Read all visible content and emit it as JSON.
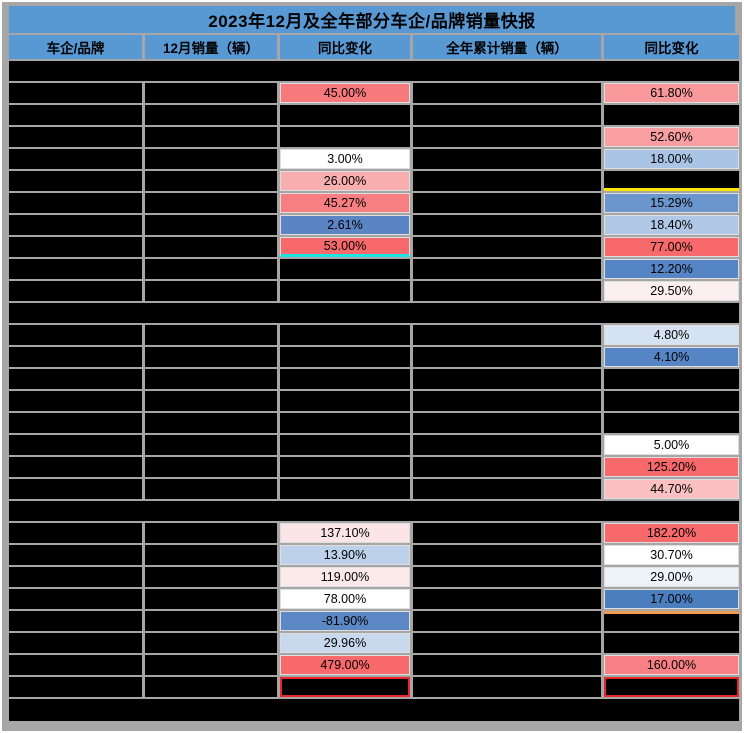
{
  "title": "2023年12月及全年部分车企/品牌销量快报",
  "columns": [
    "车企/品牌",
    "12月销量（辆）",
    "同比变化",
    "全年累计销量（辆）",
    "同比变化"
  ],
  "theme": {
    "header_bg": "#5899d4",
    "grout": "#a6a6a6",
    "redaction": "#000000",
    "accent_yellow": "#ffe500",
    "accent_cyan": "#1be4e4",
    "accent_orange": "#ed9e55",
    "accent_red_border": "#e8262e"
  },
  "rows": [
    {
      "type": "bar"
    },
    {
      "type": "data",
      "cells": [
        {
          "r": true
        },
        {
          "r": true
        },
        {
          "v": "45.00%",
          "bg": "#f8797c"
        },
        {
          "r": true
        },
        {
          "v": "61.80%",
          "bg": "#f9989b"
        }
      ]
    },
    {
      "type": "data",
      "cells": [
        {
          "r": true
        },
        {
          "r": true
        },
        {
          "r": true
        },
        {
          "r": true
        },
        {
          "r": true
        }
      ]
    },
    {
      "type": "data",
      "cells": [
        {
          "r": true
        },
        {
          "r": true
        },
        {
          "r": true
        },
        {
          "r": true
        },
        {
          "v": "52.60%",
          "bg": "#f99fa2"
        }
      ]
    },
    {
      "type": "data",
      "cells": [
        {
          "r": true
        },
        {
          "r": true
        },
        {
          "v": "3.00%",
          "bg": "#fefefe"
        },
        {
          "r": true
        },
        {
          "v": "18.00%",
          "bg": "#a9c4e4"
        }
      ]
    },
    {
      "type": "data",
      "cells": [
        {
          "r": true
        },
        {
          "r": true
        },
        {
          "v": "26.00%",
          "bg": "#f9aeb0"
        },
        {
          "r": true
        },
        {
          "r": true,
          "ab": "#ffe500"
        }
      ]
    },
    {
      "type": "data",
      "cells": [
        {
          "r": true
        },
        {
          "r": true
        },
        {
          "v": "45.27%",
          "bg": "#f87f81"
        },
        {
          "r": true
        },
        {
          "v": "15.29%",
          "bg": "#6b96cd"
        }
      ]
    },
    {
      "type": "data",
      "cells": [
        {
          "r": true
        },
        {
          "r": true
        },
        {
          "v": "2.61%",
          "bg": "#5a84c4"
        },
        {
          "r": true
        },
        {
          "v": "18.40%",
          "bg": "#b0c8e6"
        }
      ]
    },
    {
      "type": "data",
      "cells": [
        {
          "r": true
        },
        {
          "r": true
        },
        {
          "v": "53.00%",
          "bg": "#f8696b",
          "ab": "#1be4e4"
        },
        {
          "r": true
        },
        {
          "v": "77.00%",
          "bg": "#f8696b"
        }
      ]
    },
    {
      "type": "data",
      "cells": [
        {
          "r": true
        },
        {
          "r": true
        },
        {
          "r": true
        },
        {
          "r": true
        },
        {
          "v": "12.20%",
          "bg": "#5585c5"
        }
      ]
    },
    {
      "type": "data",
      "cells": [
        {
          "r": true
        },
        {
          "r": true
        },
        {
          "r": true
        },
        {
          "r": true
        },
        {
          "v": "29.50%",
          "bg": "#fbeff0"
        }
      ]
    },
    {
      "type": "bar"
    },
    {
      "type": "data",
      "cells": [
        {
          "r": true
        },
        {
          "r": true
        },
        {
          "r": true
        },
        {
          "r": true
        },
        {
          "v": "4.80%",
          "bg": "#d5e2f1"
        }
      ]
    },
    {
      "type": "data",
      "cells": [
        {
          "r": true
        },
        {
          "r": true
        },
        {
          "r": true
        },
        {
          "r": true
        },
        {
          "v": "4.10%",
          "bg": "#5585c5"
        }
      ]
    },
    {
      "type": "data",
      "cells": [
        {
          "r": true
        },
        {
          "r": true
        },
        {
          "r": true
        },
        {
          "r": true
        },
        {
          "r": true
        }
      ]
    },
    {
      "type": "data",
      "cells": [
        {
          "r": true
        },
        {
          "r": true
        },
        {
          "r": true
        },
        {
          "r": true
        },
        {
          "r": true
        }
      ]
    },
    {
      "type": "data",
      "cells": [
        {
          "r": true
        },
        {
          "r": true
        },
        {
          "r": true
        },
        {
          "r": true
        },
        {
          "r": true
        }
      ]
    },
    {
      "type": "data",
      "cells": [
        {
          "r": true
        },
        {
          "r": true
        },
        {
          "r": true
        },
        {
          "r": true
        },
        {
          "v": "5.00%",
          "bg": "#fefeff"
        }
      ]
    },
    {
      "type": "data",
      "cells": [
        {
          "r": true
        },
        {
          "r": true
        },
        {
          "r": true
        },
        {
          "r": true
        },
        {
          "v": "125.20%",
          "bg": "#f8696b"
        }
      ]
    },
    {
      "type": "data",
      "cells": [
        {
          "r": true
        },
        {
          "r": true
        },
        {
          "r": true
        },
        {
          "r": true
        },
        {
          "v": "44.70%",
          "bg": "#fac0c2"
        }
      ]
    },
    {
      "type": "bar"
    },
    {
      "type": "data",
      "cells": [
        {
          "r": true
        },
        {
          "r": true
        },
        {
          "v": "137.10%",
          "bg": "#fbe5e6"
        },
        {
          "r": true
        },
        {
          "v": "182.20%",
          "bg": "#f8696b"
        }
      ]
    },
    {
      "type": "data",
      "cells": [
        {
          "r": true
        },
        {
          "r": true
        },
        {
          "v": "13.90%",
          "bg": "#bdd2ea"
        },
        {
          "r": true
        },
        {
          "v": "30.70%",
          "bg": "#fefeff"
        }
      ]
    },
    {
      "type": "data",
      "cells": [
        {
          "r": true
        },
        {
          "r": true
        },
        {
          "v": "119.00%",
          "bg": "#fbe9ea"
        },
        {
          "r": true
        },
        {
          "v": "29.00%",
          "bg": "#edf3f9"
        }
      ]
    },
    {
      "type": "data",
      "cells": [
        {
          "r": true
        },
        {
          "r": true
        },
        {
          "v": "78.00%",
          "bg": "#fefeff"
        },
        {
          "r": true
        },
        {
          "v": "17.00%",
          "bg": "#4a7ebf"
        }
      ]
    },
    {
      "type": "data",
      "cells": [
        {
          "r": true
        },
        {
          "r": true
        },
        {
          "v": "-81.90%",
          "bg": "#5b87c5"
        },
        {
          "r": true
        },
        {
          "r": true,
          "at": "#ed9e55"
        }
      ]
    },
    {
      "type": "data",
      "cells": [
        {
          "r": true
        },
        {
          "r": true
        },
        {
          "v": "29.96%",
          "bg": "#c8d9ee"
        },
        {
          "r": true
        },
        {
          "r": true
        }
      ]
    },
    {
      "type": "data",
      "cells": [
        {
          "r": true
        },
        {
          "r": true
        },
        {
          "v": "479.00%",
          "bg": "#f8696b"
        },
        {
          "r": true
        },
        {
          "v": "160.00%",
          "bg": "#f98084"
        }
      ]
    },
    {
      "type": "data",
      "cells": [
        {
          "r": true
        },
        {
          "r": true
        },
        {
          "r": true,
          "bd": "#e8262e"
        },
        {
          "r": true
        },
        {
          "r": true,
          "bd": "#e8262e"
        }
      ]
    },
    {
      "type": "bar",
      "footer": true
    }
  ]
}
